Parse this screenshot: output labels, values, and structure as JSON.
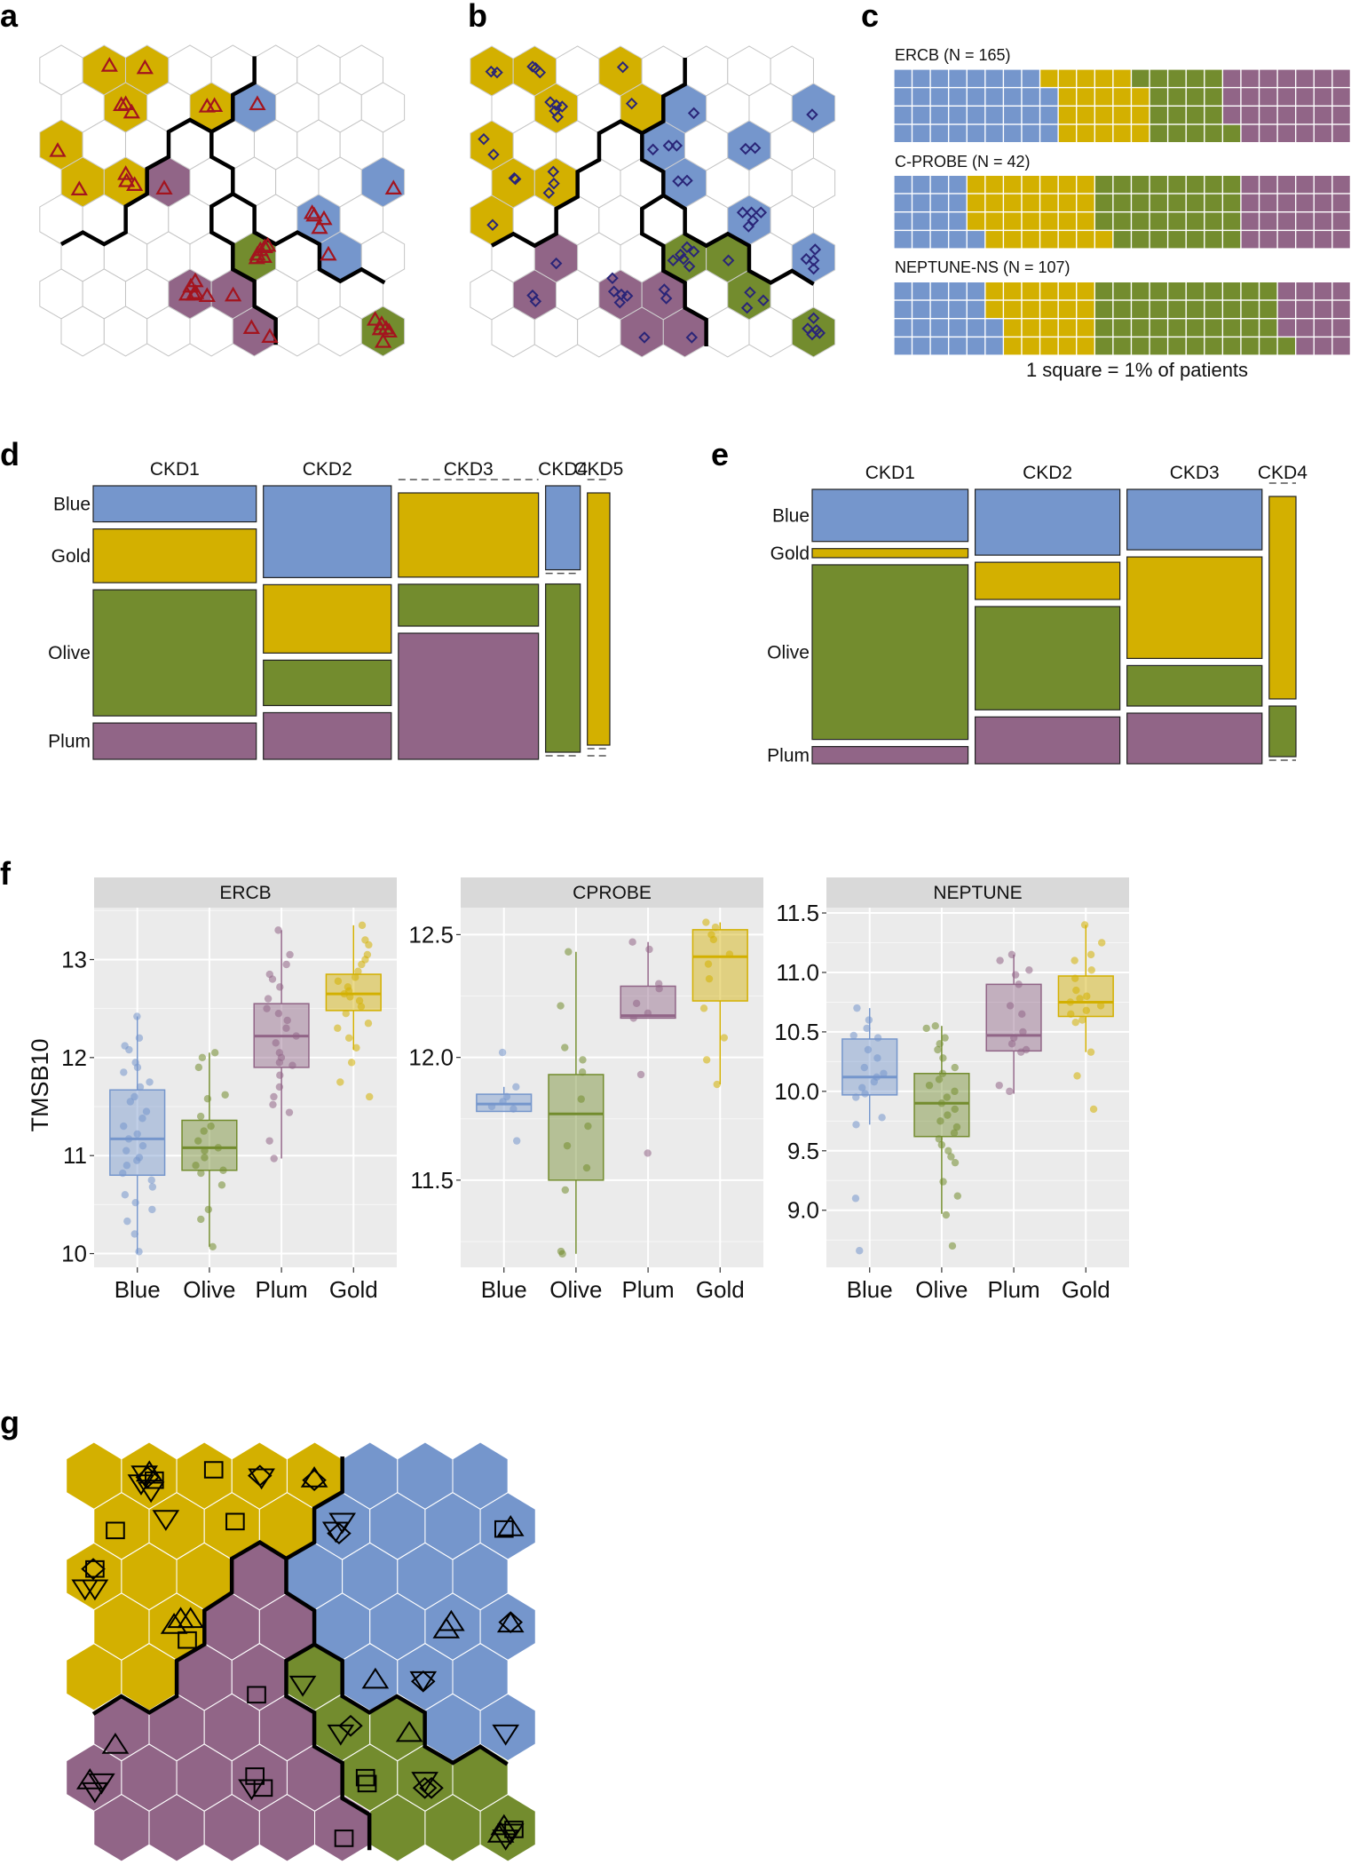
{
  "panel_letters": {
    "a": "a",
    "b": "b",
    "c": "c",
    "d": "d",
    "e": "e",
    "f": "f",
    "g": "g"
  },
  "colors": {
    "Blue": "#7596cc",
    "Gold": "#d3b000",
    "Olive": "#738c2e",
    "Plum": "#916587",
    "empty": "#ffffff",
    "marker_a": "#a3141e",
    "marker_b": "#2a2578",
    "marker_g": "#000000"
  },
  "hex_a": {
    "marker": "triangle",
    "grid": [
      "WGGWWWWW",
      "WGWGBWWW",
      "GWWWWWWW",
      "GGPWWWWB",
      "WWWWWWBW",
      "WWWWOWBW",
      "WWWPPWWW",
      "WWWWPWWO"
    ]
  },
  "hex_b": {
    "marker": "diamond",
    "grid": [
      "GGWGWWWW",
      "WGWGBWWB",
      "GWWWBWBW",
      "GGWWBWWW",
      "GWWWWWBW",
      "WPWWOOWB",
      "WPWPPWOW",
      "WWWPPWWO"
    ]
  },
  "hex_g": {
    "marker": "mixed",
    "grid": [
      "GGGGGBBB",
      "GGGGBBBB",
      "GGGPBBBB",
      "GGPPBBBB",
      "GGPPOBBB",
      "PPPPOOBB",
      "PPPPPOOO",
      "PPPPPOOO"
    ]
  },
  "waffle": {
    "caption": "1 square = 1% of patients",
    "order": [
      "Blue",
      "Gold",
      "Olive",
      "Plum"
    ],
    "cohorts": [
      {
        "label": "ERCB (N = 165)",
        "counts": [
          35,
          20,
          18,
          27
        ]
      },
      {
        "label": "C-PROBE (N = 42)",
        "counts": [
          17,
          28,
          31,
          24
        ]
      },
      {
        "label": "NEPTUNE-NS (N = 107)",
        "counts": [
          22,
          22,
          41,
          15
        ]
      }
    ]
  },
  "chart_data": [
    {
      "type": "mosaic",
      "panel": "d",
      "row_labels": [
        "Blue",
        "Gold",
        "Olive",
        "Plum"
      ],
      "columns": [
        {
          "label": "CKD1",
          "width": 0.334,
          "props": [
            0.143,
            0.213,
            0.5,
            0.144
          ]
        },
        {
          "label": "CKD2",
          "width": 0.262,
          "props": [
            0.364,
            0.271,
            0.18,
            0.185
          ]
        },
        {
          "label": "CKD3",
          "width": 0.287,
          "props": [
            0,
            0.334,
            0.166,
            0.5
          ]
        },
        {
          "label": "CKD4",
          "width": 0.071,
          "props": [
            0.333,
            0,
            0.667,
            0
          ]
        },
        {
          "label": "CKD5",
          "width": 0.046,
          "props": [
            0,
            1.0,
            0,
            0
          ]
        }
      ]
    },
    {
      "type": "mosaic",
      "panel": "e",
      "row_labels": [
        "Blue",
        "Gold",
        "Olive",
        "Plum"
      ],
      "columns": [
        {
          "label": "CKD1",
          "width": 0.337,
          "props": [
            0.206,
            0.036,
            0.69,
            0.068
          ]
        },
        {
          "label": "CKD2",
          "width": 0.313,
          "props": [
            0.26,
            0.147,
            0.408,
            0.185
          ]
        },
        {
          "label": "CKD3",
          "width": 0.292,
          "props": [
            0.239,
            0.401,
            0.16,
            0.2
          ]
        },
        {
          "label": "CKD4",
          "width": 0.058,
          "props": [
            0,
            0.8,
            0.2,
            0
          ]
        }
      ]
    },
    {
      "type": "box",
      "panel": "f",
      "ylabel": "TMSB10",
      "categories": [
        "Blue",
        "Olive",
        "Plum",
        "Gold"
      ],
      "facets": [
        {
          "title": "ERCB",
          "ylim": [
            9.86,
            13.53
          ],
          "yticks": [
            10,
            11,
            12,
            13
          ],
          "ytick_labels": [
            "10",
            "11",
            "12",
            "13"
          ],
          "groups": [
            {
              "name": "Blue",
              "q1": 10.8,
              "median": 11.17,
              "q3": 11.67,
              "whisker_low": 10.0,
              "whisker_high": 12.42,
              "points": [
                12.42,
                12.2,
                12.12,
                12.08,
                11.95,
                11.9,
                11.85,
                11.75,
                11.7,
                11.6,
                11.55,
                11.45,
                11.38,
                11.3,
                11.22,
                11.17,
                11.1,
                11.05,
                10.98,
                10.95,
                10.9,
                10.82,
                10.75,
                10.68,
                10.6,
                10.52,
                10.45,
                10.33,
                10.2,
                10.02
              ]
            },
            {
              "name": "Olive",
              "q1": 10.85,
              "median": 11.08,
              "q3": 11.36,
              "whisker_low": 10.07,
              "whisker_high": 12.05,
              "points": [
                12.05,
                12.0,
                11.9,
                11.62,
                11.58,
                11.4,
                11.3,
                11.25,
                11.15,
                11.08,
                11.05,
                10.98,
                10.9,
                10.85,
                10.82,
                10.7,
                10.45,
                10.35,
                10.07
              ]
            },
            {
              "name": "Plum",
              "q1": 11.9,
              "median": 12.22,
              "q3": 12.55,
              "whisker_low": 10.97,
              "whisker_high": 13.3,
              "points": [
                13.3,
                13.05,
                12.95,
                12.85,
                12.8,
                12.72,
                12.6,
                12.5,
                12.45,
                12.38,
                12.3,
                12.22,
                12.15,
                12.05,
                12.0,
                11.95,
                11.92,
                11.82,
                11.7,
                11.6,
                11.52,
                11.44,
                11.15,
                10.97
              ]
            },
            {
              "name": "Gold",
              "q1": 12.48,
              "median": 12.65,
              "q3": 12.85,
              "whisker_low": 12.08,
              "whisker_high": 13.35,
              "points": [
                13.35,
                13.2,
                13.15,
                13.05,
                13.0,
                12.95,
                12.88,
                12.82,
                12.78,
                12.72,
                12.68,
                12.65,
                12.62,
                12.58,
                12.52,
                12.45,
                12.35,
                12.3,
                12.2,
                12.1,
                11.95,
                11.75,
                11.6
              ]
            }
          ]
        },
        {
          "title": "CPROBE",
          "ylim": [
            11.145,
            12.61
          ],
          "yticks": [
            11.5,
            12.0,
            12.5
          ],
          "ytick_labels": [
            "11.5",
            "12.0",
            "12.5"
          ],
          "groups": [
            {
              "name": "Blue",
              "q1": 11.78,
              "median": 11.81,
              "q3": 11.85,
              "whisker_low": 11.78,
              "whisker_high": 11.88,
              "points": [
                12.02,
                11.88,
                11.84,
                11.82,
                11.8,
                11.79,
                11.66
              ]
            },
            {
              "name": "Olive",
              "q1": 11.5,
              "median": 11.77,
              "q3": 11.93,
              "whisker_low": 11.2,
              "whisker_high": 12.43,
              "points": [
                12.43,
                12.21,
                12.04,
                11.99,
                11.94,
                11.83,
                11.72,
                11.64,
                11.55,
                11.46,
                11.21,
                11.2
              ]
            },
            {
              "name": "Plum",
              "q1": 12.16,
              "median": 12.17,
              "q3": 12.29,
              "whisker_low": 12.16,
              "whisker_high": 12.47,
              "points": [
                12.47,
                12.44,
                12.3,
                12.28,
                12.22,
                12.18,
                12.16,
                11.93,
                11.61
              ]
            },
            {
              "name": "Gold",
              "q1": 12.23,
              "median": 12.41,
              "q3": 12.52,
              "whisker_low": 11.89,
              "whisker_high": 12.55,
              "points": [
                12.55,
                12.53,
                12.5,
                12.48,
                12.42,
                12.38,
                12.32,
                12.2,
                12.08,
                11.99,
                11.89
              ]
            }
          ]
        },
        {
          "title": "NEPTUNE",
          "ylim": [
            8.52,
            11.545
          ],
          "yticks": [
            9.0,
            9.5,
            10.0,
            10.5,
            11.0,
            11.5
          ],
          "ytick_labels": [
            "9.0",
            "9.5",
            "10.0",
            "10.5",
            "11.0",
            "11.5"
          ],
          "groups": [
            {
              "name": "Blue",
              "q1": 9.97,
              "median": 10.12,
              "q3": 10.44,
              "whisker_low": 9.72,
              "whisker_high": 10.7,
              "points": [
                10.7,
                10.6,
                10.53,
                10.47,
                10.45,
                10.35,
                10.28,
                10.2,
                10.15,
                10.12,
                10.08,
                10.03,
                9.98,
                9.95,
                9.78,
                9.72,
                9.1,
                8.66
              ]
            },
            {
              "name": "Olive",
              "q1": 9.62,
              "median": 9.9,
              "q3": 10.15,
              "whisker_low": 8.97,
              "whisker_high": 10.55,
              "points": [
                10.55,
                10.53,
                10.45,
                10.4,
                10.35,
                10.28,
                10.2,
                10.15,
                10.1,
                10.05,
                10.0,
                9.95,
                9.9,
                9.85,
                9.8,
                9.75,
                9.7,
                9.65,
                9.6,
                9.55,
                9.5,
                9.45,
                9.4,
                9.24,
                9.12,
                8.96,
                8.7
              ]
            },
            {
              "name": "Plum",
              "q1": 10.34,
              "median": 10.47,
              "q3": 10.9,
              "whisker_low": 9.98,
              "whisker_high": 11.15,
              "points": [
                11.15,
                11.1,
                11.02,
                10.98,
                10.9,
                10.72,
                10.65,
                10.5,
                10.45,
                10.4,
                10.35,
                10.33,
                10.05,
                10.0
              ]
            },
            {
              "name": "Gold",
              "q1": 10.63,
              "median": 10.75,
              "q3": 10.97,
              "whisker_low": 10.33,
              "whisker_high": 11.4,
              "points": [
                11.4,
                11.25,
                11.15,
                11.1,
                11.02,
                10.95,
                10.85,
                10.8,
                10.78,
                10.75,
                10.72,
                10.68,
                10.65,
                10.6,
                10.58,
                10.33,
                10.13,
                9.85
              ]
            }
          ]
        }
      ]
    }
  ]
}
